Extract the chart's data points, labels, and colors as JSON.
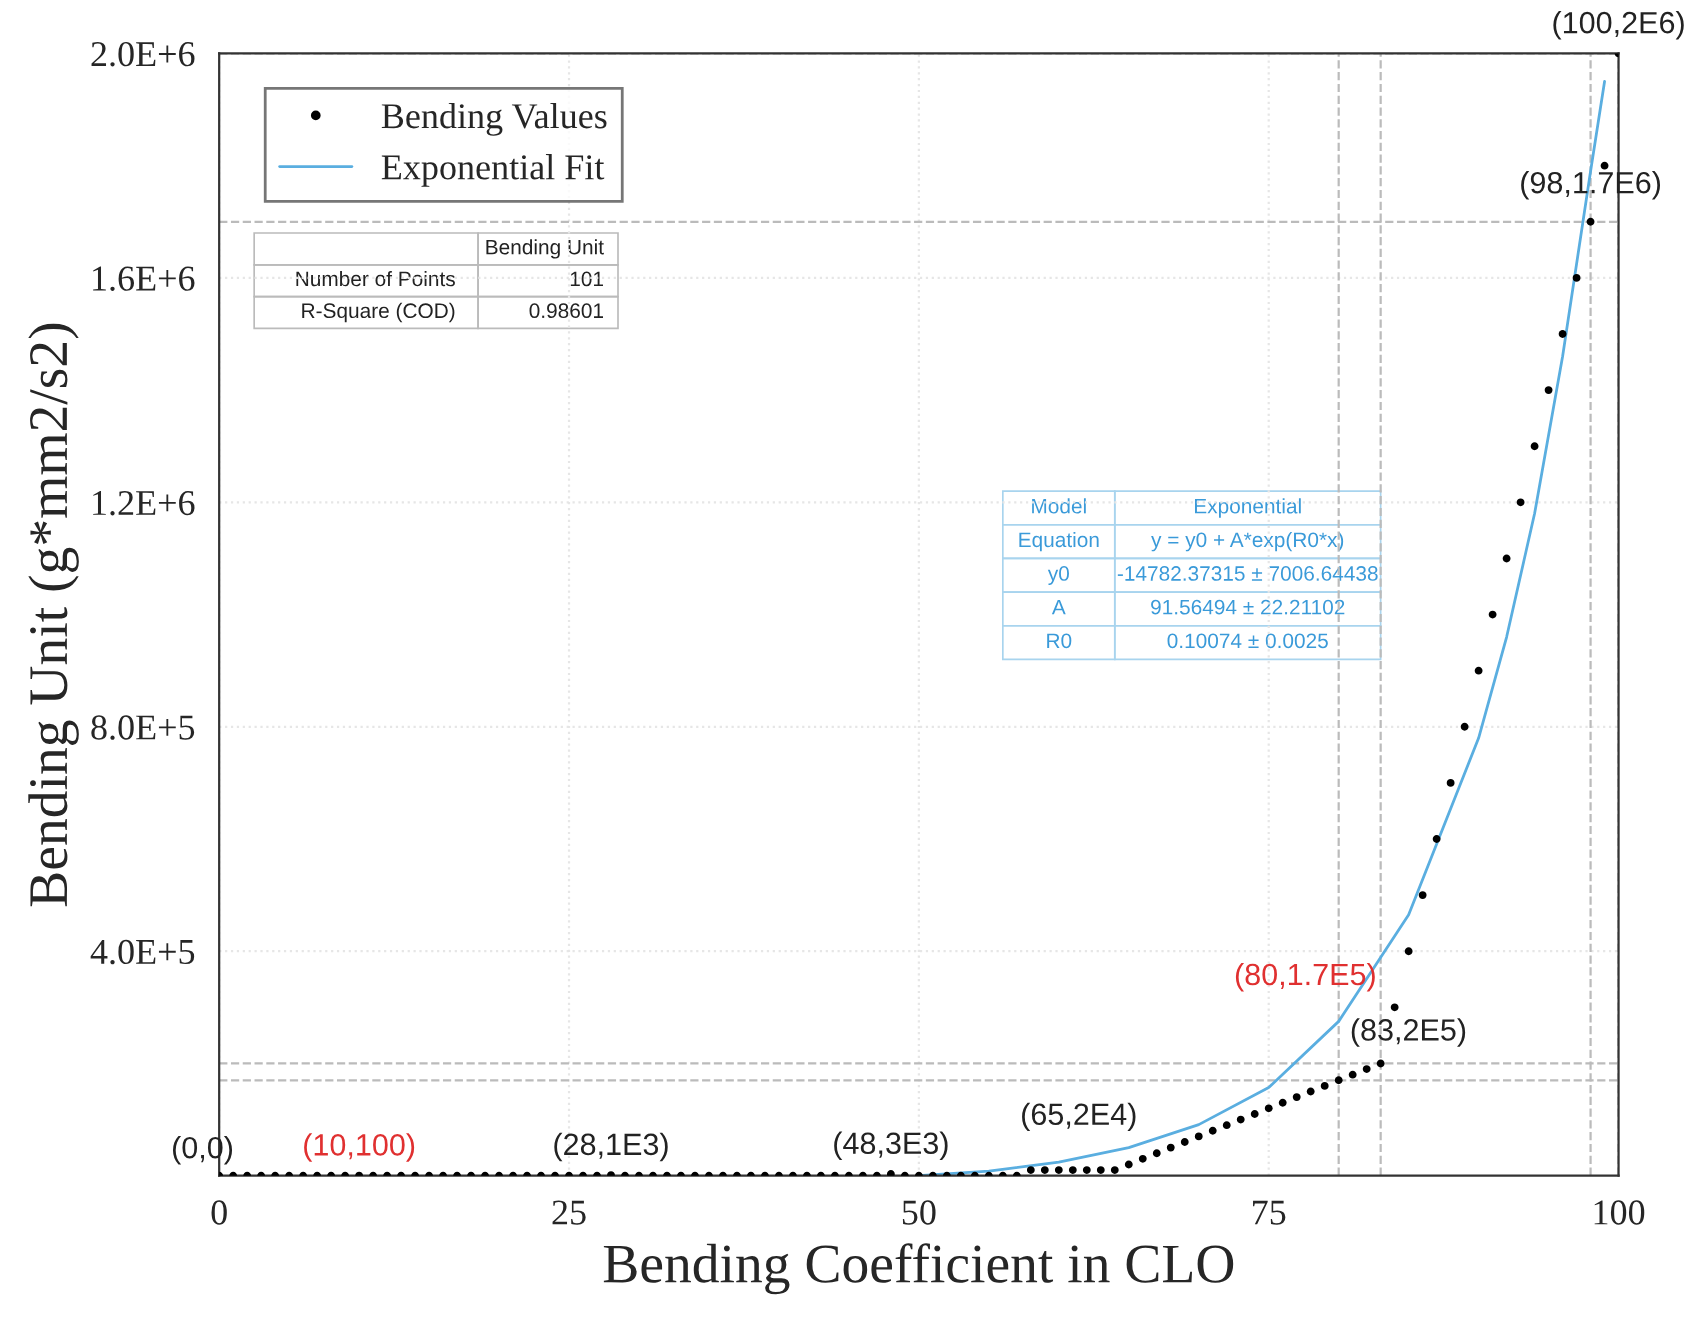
{
  "chart_data": {
    "type": "scatter",
    "xlabel": "Bending Coefficient in CLO",
    "ylabel": "Bending Unit (g*mm2/s2)",
    "xlim": [
      0,
      100
    ],
    "ylim": [
      0,
      2000000
    ],
    "xticks": [
      0,
      25,
      50,
      75,
      100
    ],
    "yticks": [
      {
        "value": 400000,
        "label": "4.0E+5"
      },
      {
        "value": 800000,
        "label": "8.0E+5"
      },
      {
        "value": 1200000,
        "label": "1.2E+6"
      },
      {
        "value": 1600000,
        "label": "1.6E+6"
      },
      {
        "value": 2000000,
        "label": "2.0E+6"
      }
    ],
    "grid": true,
    "legend": "top left",
    "series": [
      {
        "name": "Bending Values",
        "type": "scatter",
        "color": "#000000",
        "marker": "circle",
        "x": [
          0,
          1,
          2,
          3,
          4,
          5,
          6,
          7,
          8,
          9,
          10,
          11,
          12,
          13,
          14,
          15,
          16,
          17,
          18,
          19,
          20,
          21,
          22,
          23,
          24,
          25,
          26,
          27,
          28,
          29,
          30,
          31,
          32,
          33,
          34,
          35,
          36,
          37,
          38,
          39,
          40,
          41,
          42,
          43,
          44,
          45,
          46,
          47,
          48,
          49,
          50,
          51,
          52,
          53,
          54,
          55,
          56,
          57,
          58,
          59,
          60,
          61,
          62,
          63,
          64,
          65,
          66,
          67,
          68,
          69,
          70,
          71,
          72,
          73,
          74,
          75,
          76,
          77,
          78,
          79,
          80,
          81,
          82,
          83,
          84,
          85,
          86,
          87,
          88,
          89,
          90,
          91,
          92,
          93,
          94,
          95,
          96,
          97,
          98,
          99,
          100
        ],
        "values": [
          0,
          0,
          0,
          0,
          0,
          0,
          0,
          0,
          0,
          0,
          100,
          0,
          0,
          0,
          0,
          0,
          0,
          0,
          0,
          0,
          0,
          0,
          0,
          0,
          0,
          0,
          0,
          0,
          1000,
          0,
          0,
          0,
          0,
          0,
          0,
          0,
          0,
          0,
          0,
          0,
          0,
          0,
          0,
          0,
          0,
          0,
          0,
          0,
          3000,
          0,
          0,
          0,
          0,
          0,
          0,
          0,
          0,
          0,
          10000,
          10000,
          10000,
          10000,
          10000,
          10000,
          10000,
          20000,
          30000,
          40000,
          50000,
          60000,
          70000,
          80000,
          90000,
          100000,
          110000,
          120000,
          130000,
          140000,
          150000,
          160000,
          170000,
          180000,
          190000,
          200000,
          300000,
          400000,
          500000,
          600000,
          700000,
          800000,
          900000,
          1000000,
          1100000,
          1200000,
          1300000,
          1400000,
          1500000,
          1600000,
          1700000,
          1800000,
          2000000
        ]
      },
      {
        "name": "Exponential Fit",
        "type": "line",
        "color": "#5aaee0",
        "line_style": "solid",
        "x": [
          50,
          55,
          60,
          65,
          70,
          75,
          80,
          85,
          90,
          92,
          94,
          96,
          98,
          99
        ],
        "values": [
          0,
          8000,
          24000,
          50000,
          91000,
          157000,
          275000,
          465000,
          780000,
          960000,
          1180000,
          1460000,
          1790000,
          1950000
        ]
      }
    ],
    "ref_lines": [
      {
        "axis": "y",
        "value": 2000000,
        "color": "#bbbbbb",
        "line_style": "dashed"
      },
      {
        "axis": "y",
        "value": 1700000,
        "color": "#bbbbbb",
        "line_style": "dashed"
      },
      {
        "axis": "y",
        "value": 200000,
        "color": "#bbbbbb",
        "line_style": "dashed"
      },
      {
        "axis": "y",
        "value": 170000,
        "color": "#bbbbbb",
        "line_style": "dashed"
      },
      {
        "axis": "x",
        "value": 80,
        "color": "#bbbbbb",
        "line_style": "dashed"
      },
      {
        "axis": "x",
        "value": 83,
        "color": "#bbbbbb",
        "line_style": "dashed"
      },
      {
        "axis": "x",
        "value": 98,
        "color": "#bbbbbb",
        "line_style": "dashed"
      },
      {
        "axis": "x",
        "value": 100,
        "color": "#bbbbbb",
        "line_style": "dashed"
      }
    ],
    "annotations": [
      {
        "text": "(0,0)",
        "x": 0,
        "y": 0
      },
      {
        "text": "(10,100)",
        "x": 10,
        "y": 100
      },
      {
        "text": "(28,1E3)",
        "x": 28,
        "y": 1000
      },
      {
        "text": "(48,3E3)",
        "x": 48,
        "y": 3000
      },
      {
        "text": "(65,2E4)",
        "x": 65,
        "y": 20000
      },
      {
        "text": "(80,1.7E5)",
        "x": 80,
        "y": 170000
      },
      {
        "text": "(83,2E5)",
        "x": 83,
        "y": 200000
      },
      {
        "text": "(98,1.7E6)",
        "x": 98,
        "y": 1700000
      },
      {
        "text": "(100,2E6)",
        "x": 100,
        "y": 2000000
      },
      "Bending Unit",
      "Number of Points",
      "101",
      "R-Square (COD)",
      "0.98601",
      "Model",
      "Exponential",
      "Equation",
      "y = y0 + A*exp(R0*x)",
      "y0",
      "-14782.37315 ± 7006.64438",
      "A",
      "91.56494 ± 22.21102",
      "R0",
      "0.10074 ± 0.0025"
    ]
  }
}
